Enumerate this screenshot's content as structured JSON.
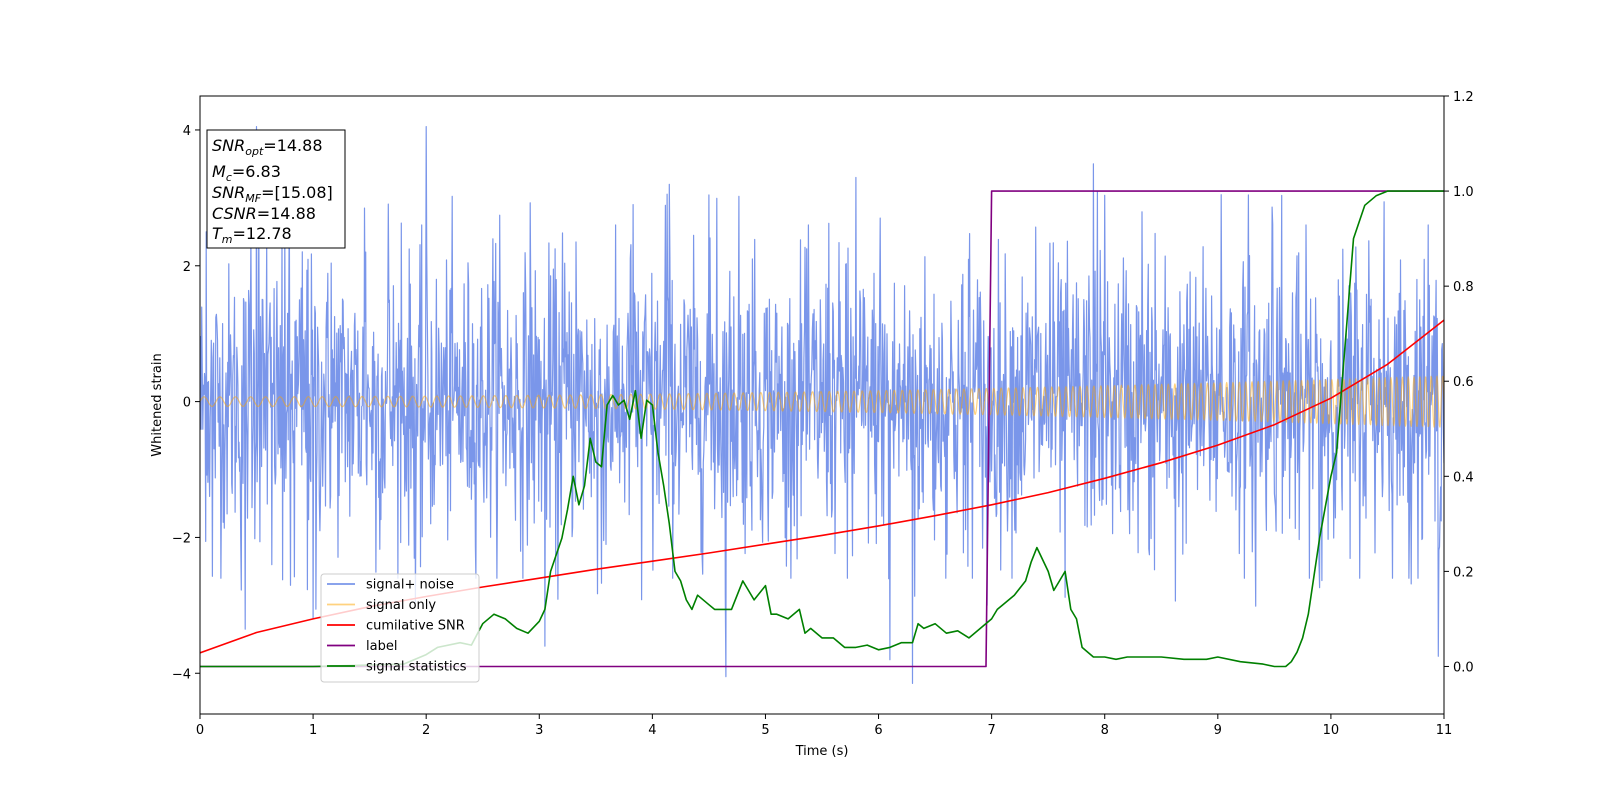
{
  "chart_data": {
    "type": "line",
    "xlabel": "Time (s)",
    "ylabel": "Whitened strain",
    "xlim": [
      0,
      11
    ],
    "ylim": [
      -4.6,
      4.5
    ],
    "y2lim": [
      -0.1,
      1.2
    ],
    "x_ticks": [
      0,
      1,
      2,
      3,
      4,
      5,
      6,
      7,
      8,
      9,
      10,
      11
    ],
    "y_ticks": [
      -4,
      -2,
      0,
      2,
      4
    ],
    "y2_ticks": [
      0.0,
      0.2,
      0.4,
      0.6,
      0.8,
      1.0,
      1.2
    ],
    "x_tick_labels": [
      "0",
      "1",
      "2",
      "3",
      "4",
      "5",
      "6",
      "7",
      "8",
      "9",
      "10",
      "11"
    ],
    "y_tick_labels": [
      "−4",
      "−2",
      "0",
      "2",
      "4"
    ],
    "y2_tick_labels": [
      "0.0",
      "0.2",
      "0.4",
      "0.6",
      "0.8",
      "1.0",
      "1.2"
    ],
    "legend_placement": "lower-left",
    "grid": false,
    "annotation": {
      "snr_opt": {
        "var": "SNR",
        "sub": "opt",
        "value": "=14.88"
      },
      "mc": {
        "var": "M",
        "sub": "c",
        "value": "=6.83"
      },
      "snr_mf": {
        "var": "SNR",
        "sub": "MF",
        "value": "=[15.08]"
      },
      "csnr": {
        "var": "CSNR",
        "sub": "",
        "value": "=14.88"
      },
      "tm": {
        "var": "T",
        "sub": "m",
        "value": "=12.78"
      }
    },
    "series": [
      {
        "name": "signal+ noise",
        "color": "#4169e1",
        "axis": "left",
        "kind": "noise",
        "amplitude_std": 1.0,
        "noise_envelope": [
          -2.0,
          2.0
        ],
        "peak_values": [
          {
            "x": 0.5,
            "y": 4.05
          },
          {
            "x": 2.0,
            "y": 4.05
          },
          {
            "x": 7.9,
            "y": 3.5
          },
          {
            "x": 6.3,
            "y": -4.15
          },
          {
            "x": 4.65,
            "y": -4.05
          },
          {
            "x": 6.1,
            "y": -3.8
          },
          {
            "x": 0.4,
            "y": -3.35
          },
          {
            "x": 10.95,
            "y": -3.75
          },
          {
            "x": 1.0,
            "y": -3.2
          },
          {
            "x": 5.8,
            "y": 3.3
          },
          {
            "x": 4.15,
            "y": 3.2
          },
          {
            "x": 3.05,
            "y": -3.6
          }
        ]
      },
      {
        "name": "signal only",
        "color": "#ffa500",
        "axis": "left",
        "kind": "chirp",
        "amplitude_start": 0.07,
        "amplitude_end": 0.38,
        "frequency_start_hz": 7,
        "frequency_end_hz": 20
      },
      {
        "name": "cumilative SNR",
        "color": "#ff0000",
        "axis": "left",
        "x": [
          0,
          0.5,
          1,
          1.5,
          2,
          2.5,
          3,
          3.5,
          4,
          4.5,
          5,
          5.5,
          6,
          6.5,
          7,
          7.5,
          8,
          8.5,
          9,
          9.5,
          10,
          10.5,
          11
        ],
        "y": [
          -3.7,
          -3.4,
          -3.2,
          -3.02,
          -2.87,
          -2.73,
          -2.6,
          -2.47,
          -2.35,
          -2.23,
          -2.1,
          -1.97,
          -1.83,
          -1.68,
          -1.52,
          -1.34,
          -1.13,
          -0.9,
          -0.64,
          -0.34,
          0.05,
          0.55,
          1.2
        ]
      },
      {
        "name": "label",
        "color": "#800080",
        "axis": "right",
        "x": [
          0,
          6.95,
          7.0,
          11
        ],
        "y": [
          0.0,
          0.0,
          1.0,
          1.0
        ]
      },
      {
        "name": "signal statistics",
        "color": "#008000",
        "axis": "right",
        "x": [
          0,
          1.0,
          1.8,
          2.0,
          2.1,
          2.3,
          2.4,
          2.5,
          2.6,
          2.7,
          2.8,
          2.9,
          3.0,
          3.05,
          3.1,
          3.2,
          3.25,
          3.3,
          3.35,
          3.4,
          3.45,
          3.5,
          3.55,
          3.6,
          3.65,
          3.7,
          3.75,
          3.8,
          3.85,
          3.9,
          3.95,
          4.0,
          4.05,
          4.1,
          4.15,
          4.2,
          4.25,
          4.3,
          4.35,
          4.4,
          4.5,
          4.55,
          4.6,
          4.7,
          4.8,
          4.9,
          5.0,
          5.05,
          5.1,
          5.2,
          5.3,
          5.35,
          5.4,
          5.5,
          5.6,
          5.7,
          5.8,
          5.9,
          6.0,
          6.1,
          6.2,
          6.3,
          6.35,
          6.4,
          6.5,
          6.6,
          6.7,
          6.8,
          6.9,
          7.0,
          7.05,
          7.1,
          7.2,
          7.3,
          7.35,
          7.4,
          7.5,
          7.55,
          7.6,
          7.65,
          7.7,
          7.75,
          7.8,
          7.9,
          8.0,
          8.1,
          8.2,
          8.3,
          8.5,
          8.7,
          8.9,
          9.0,
          9.2,
          9.4,
          9.5,
          9.6,
          9.65,
          9.7,
          9.75,
          9.8,
          9.9,
          10.0,
          10.05,
          10.1,
          10.15,
          10.2,
          10.3,
          10.4,
          10.5,
          10.6,
          10.7,
          10.8,
          10.9,
          11.0
        ],
        "y": [
          0.0,
          0.0,
          0.005,
          0.025,
          0.04,
          0.05,
          0.045,
          0.09,
          0.11,
          0.1,
          0.08,
          0.07,
          0.095,
          0.12,
          0.2,
          0.27,
          0.33,
          0.4,
          0.34,
          0.38,
          0.48,
          0.43,
          0.42,
          0.55,
          0.57,
          0.55,
          0.56,
          0.52,
          0.58,
          0.48,
          0.56,
          0.55,
          0.45,
          0.38,
          0.3,
          0.2,
          0.18,
          0.14,
          0.12,
          0.15,
          0.13,
          0.12,
          0.12,
          0.12,
          0.18,
          0.14,
          0.17,
          0.11,
          0.11,
          0.1,
          0.12,
          0.07,
          0.08,
          0.06,
          0.06,
          0.04,
          0.04,
          0.045,
          0.035,
          0.04,
          0.05,
          0.05,
          0.09,
          0.08,
          0.09,
          0.07,
          0.075,
          0.06,
          0.08,
          0.1,
          0.12,
          0.13,
          0.15,
          0.18,
          0.22,
          0.25,
          0.2,
          0.16,
          0.18,
          0.2,
          0.12,
          0.1,
          0.04,
          0.02,
          0.02,
          0.015,
          0.02,
          0.02,
          0.02,
          0.015,
          0.015,
          0.02,
          0.01,
          0.005,
          0.0,
          0.0,
          0.01,
          0.03,
          0.06,
          0.11,
          0.27,
          0.4,
          0.45,
          0.6,
          0.75,
          0.9,
          0.97,
          0.99,
          1.0,
          1.0,
          1.0,
          1.0,
          1.0,
          1.0
        ]
      }
    ]
  }
}
